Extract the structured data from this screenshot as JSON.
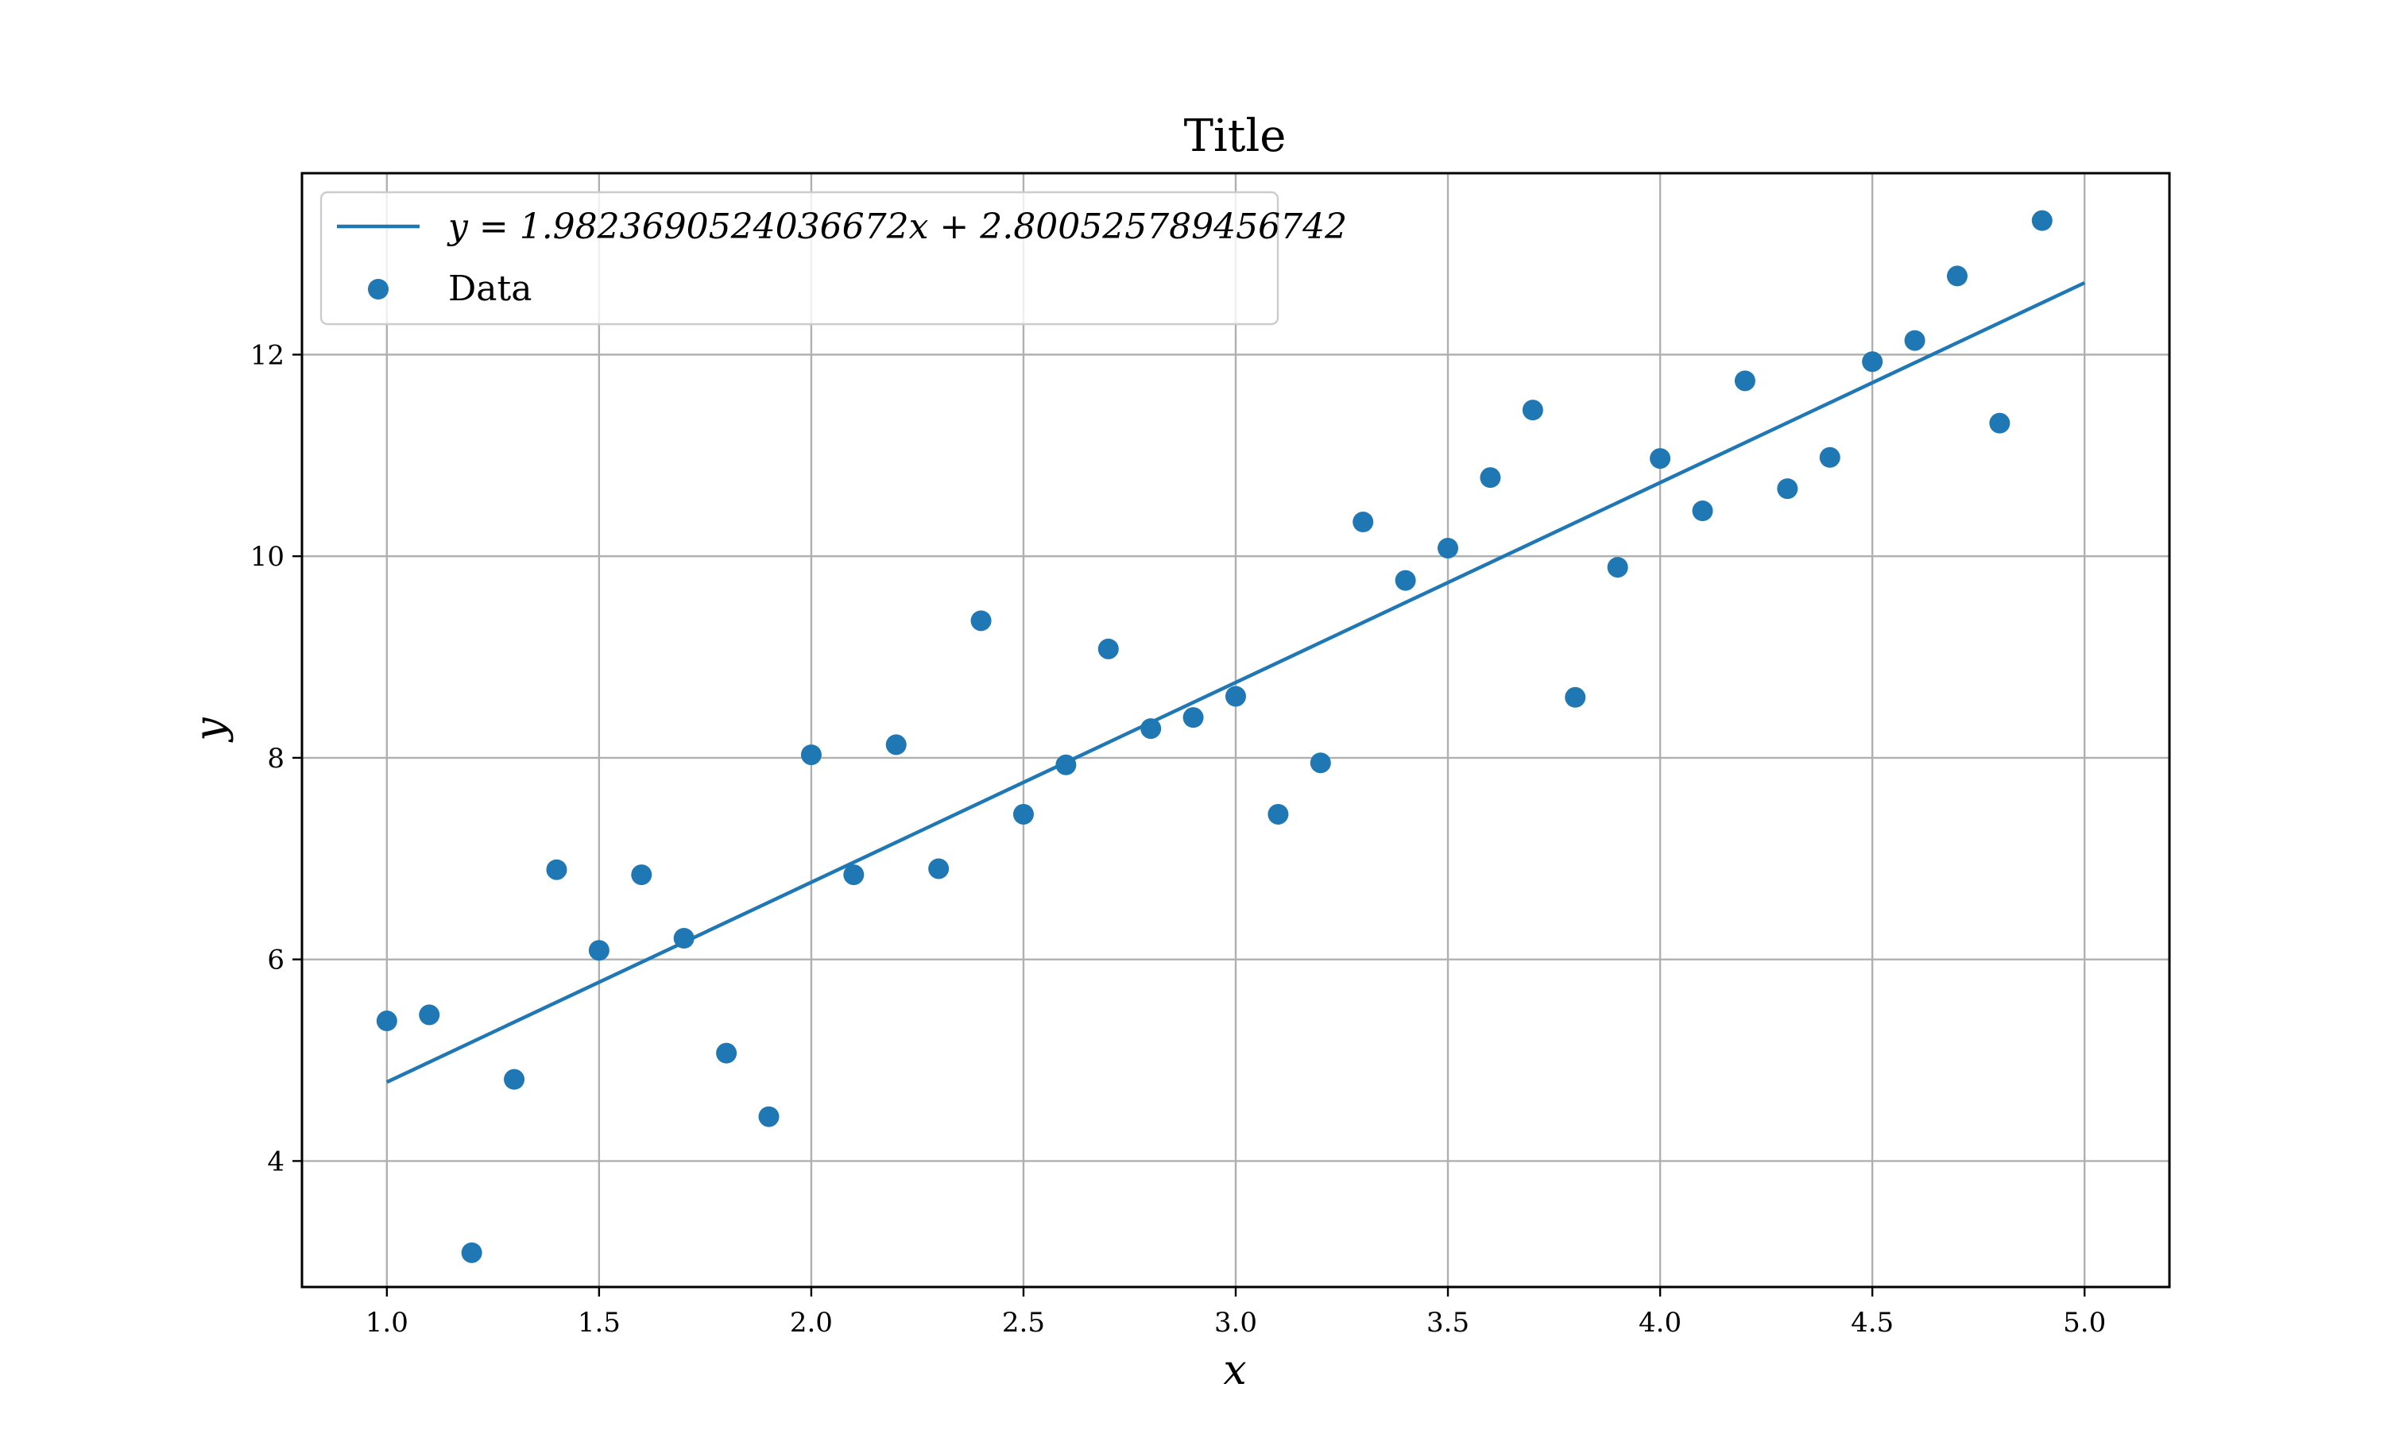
{
  "chart_data": {
    "type": "scatter",
    "title": "Title",
    "xlabel": "x",
    "ylabel": "y",
    "xlim": [
      0.8,
      5.2
    ],
    "ylim": [
      2.75,
      13.8
    ],
    "xticks": [
      1.0,
      1.5,
      2.0,
      2.5,
      3.0,
      3.5,
      4.0,
      4.5,
      5.0
    ],
    "xtick_labels": [
      "1.0",
      "1.5",
      "2.0",
      "2.5",
      "3.0",
      "3.5",
      "4.0",
      "4.5",
      "5.0"
    ],
    "yticks": [
      4,
      6,
      8,
      10,
      12
    ],
    "ytick_labels": [
      "4",
      "6",
      "8",
      "10",
      "12"
    ],
    "grid": true,
    "legend_position": "top-left",
    "color": "#1f77b4",
    "fit": {
      "label": "y = 1.9823690524036672x + 2.800525789456742",
      "slope": 1.9823690524036672,
      "intercept": 2.800525789456742,
      "x_range": [
        1.0,
        5.0
      ]
    },
    "series": [
      {
        "name": "Data",
        "x": [
          1.0,
          1.1,
          1.2,
          1.3,
          1.4,
          1.5,
          1.6,
          1.7,
          1.8,
          1.9,
          2.0,
          2.1,
          2.2,
          2.3,
          2.4,
          2.5,
          2.6,
          2.7,
          2.8,
          2.9,
          3.0,
          3.1,
          3.2,
          3.3,
          3.4,
          3.5,
          3.6,
          3.7,
          3.8,
          3.9,
          4.0,
          4.1,
          4.2,
          4.3,
          4.4,
          4.5,
          4.6,
          4.7,
          4.8,
          4.9
        ],
        "y": [
          5.39,
          5.45,
          3.09,
          4.81,
          6.89,
          6.09,
          6.84,
          6.21,
          5.07,
          4.44,
          8.03,
          6.84,
          8.13,
          6.9,
          9.36,
          7.44,
          7.93,
          9.08,
          8.29,
          8.4,
          8.61,
          7.44,
          7.95,
          10.34,
          9.76,
          10.08,
          10.78,
          11.45,
          8.6,
          9.89,
          10.97,
          10.45,
          11.74,
          10.67,
          10.98,
          11.93,
          12.14,
          12.78,
          11.32,
          13.33
        ]
      }
    ]
  }
}
